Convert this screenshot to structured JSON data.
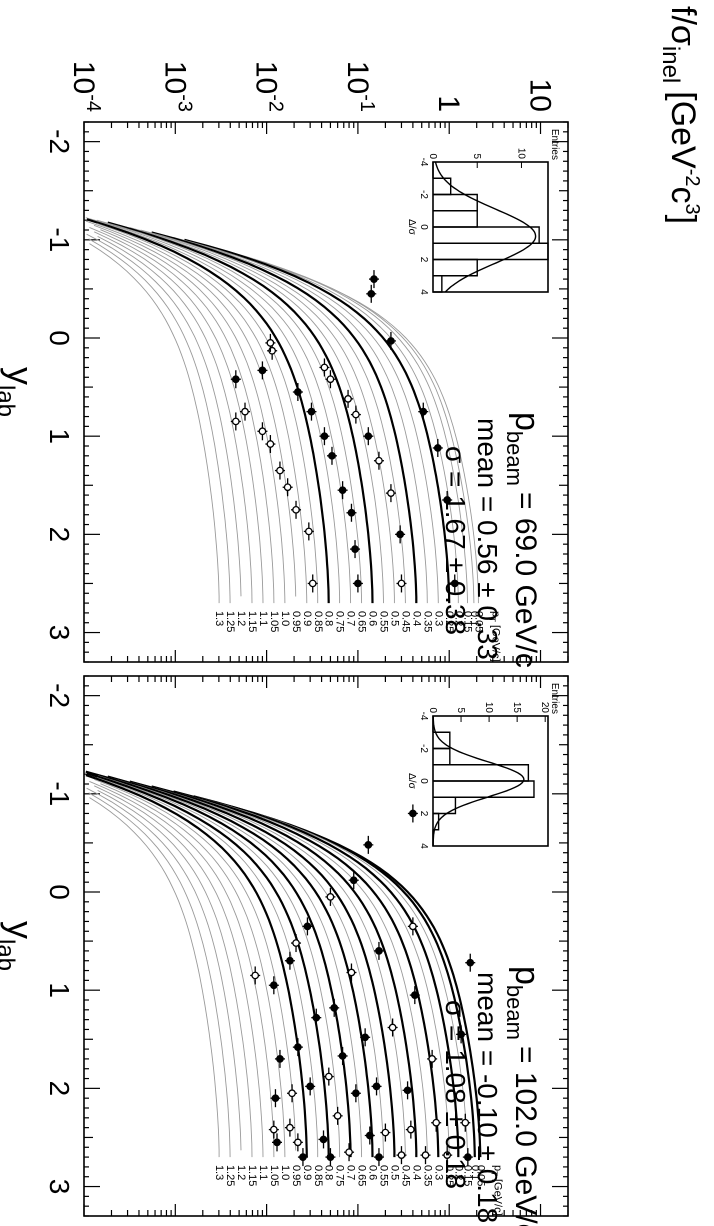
{
  "figure": {
    "ylabel_main": "f/σ",
    "ylabel_sub": "inel",
    "ylabel_unit": "[GeV",
    "ylabel_unit_sup1": "-2",
    "ylabel_unit_mid": "c",
    "ylabel_unit_sup2": "3",
    "ylabel_unit_end": "]",
    "y_ticks": [
      {
        "value": 0.0001,
        "base": "10",
        "exp": "-4"
      },
      {
        "value": 0.001,
        "base": "10",
        "exp": "-3"
      },
      {
        "value": 0.01,
        "base": "10",
        "exp": "-2"
      },
      {
        "value": 0.1,
        "base": "10",
        "exp": "-1"
      },
      {
        "value": 1,
        "base": "1",
        "exp": ""
      },
      {
        "value": 10,
        "base": "10",
        "exp": ""
      }
    ],
    "x_ticks": [
      -2,
      -1,
      0,
      1,
      2,
      3
    ],
    "xlabel_main": "y",
    "xlabel_sub": "lab"
  },
  "chart_data": [
    {
      "type": "line",
      "xlabel": "y_lab",
      "ylabel": "f/σ_inel [GeV^-2 c^3]",
      "xlim": [
        -2.2,
        3.3
      ],
      "ylim": [
        0.0001,
        20
      ],
      "yscale": "log",
      "beam_prefix": "p",
      "beam_sub": "beam",
      "beam_value": "= 69.0 GeV/c",
      "mean_text": "mean = 0.56 ± 0.33",
      "sigma_text": "σ = 1.67 ± 0.38",
      "pt_unit": "[GeV/c]",
      "pt_labels": [
        "0.05",
        "0.1",
        "0.15",
        "0.2",
        "0.25",
        "0.3",
        "0.35",
        "0.4",
        "0.45",
        "0.5",
        "0.55",
        "0.6",
        "0.65",
        "0.7",
        "0.75",
        "0.8",
        "0.85",
        "0.9",
        "0.95",
        "1.0",
        "1.05",
        "1.1",
        "1.15",
        "1.2",
        "1.25",
        "1.3"
      ],
      "curve_peak_log10": [
        0.32,
        0.27,
        0.2,
        0.1,
        0.0,
        -0.12,
        -0.24,
        -0.36,
        -0.48,
        -0.6,
        -0.72,
        -0.84,
        -0.96,
        -1.08,
        -1.2,
        -1.32,
        -1.44,
        -1.56,
        -1.68,
        -1.8,
        -1.92,
        -2.04,
        -2.16,
        -2.28,
        -2.4,
        -2.52
      ],
      "bold_curves": [
        4,
        7,
        11,
        15
      ],
      "points": [
        {
          "x": 2.5,
          "y": 1.15,
          "open": false
        },
        {
          "x": 1.65,
          "y": 0.95,
          "open": false
        },
        {
          "x": 1.12,
          "y": 0.75,
          "open": false
        },
        {
          "x": 0.75,
          "y": 0.52,
          "open": false
        },
        {
          "x": 0.03,
          "y": 0.23,
          "open": false
        },
        {
          "x": -0.45,
          "y": 0.14,
          "open": false
        },
        {
          "x": -0.6,
          "y": 0.15,
          "open": false
        },
        {
          "x": 2.5,
          "y": 0.3,
          "open": true
        },
        {
          "x": 2.0,
          "y": 0.29,
          "open": false
        },
        {
          "x": 1.58,
          "y": 0.23,
          "open": true
        },
        {
          "x": 1.25,
          "y": 0.17,
          "open": true
        },
        {
          "x": 1.0,
          "y": 0.13,
          "open": false
        },
        {
          "x": 0.78,
          "y": 0.095,
          "open": true
        },
        {
          "x": 0.62,
          "y": 0.078,
          "open": true
        },
        {
          "x": 0.42,
          "y": 0.05,
          "open": true
        },
        {
          "x": 0.3,
          "y": 0.043,
          "open": true
        },
        {
          "x": 2.5,
          "y": 0.1,
          "open": false
        },
        {
          "x": 2.15,
          "y": 0.093,
          "open": false
        },
        {
          "x": 1.78,
          "y": 0.085,
          "open": false
        },
        {
          "x": 1.55,
          "y": 0.068,
          "open": false
        },
        {
          "x": 1.2,
          "y": 0.052,
          "open": false
        },
        {
          "x": 1.0,
          "y": 0.043,
          "open": false
        },
        {
          "x": 0.75,
          "y": 0.031,
          "open": false
        },
        {
          "x": 0.55,
          "y": 0.022,
          "open": false
        },
        {
          "x": 0.13,
          "y": 0.0115,
          "open": true
        },
        {
          "x": 0.05,
          "y": 0.011,
          "open": true
        },
        {
          "x": 2.5,
          "y": 0.032,
          "open": true
        },
        {
          "x": 1.97,
          "y": 0.029,
          "open": true
        },
        {
          "x": 1.75,
          "y": 0.021,
          "open": true
        },
        {
          "x": 1.52,
          "y": 0.017,
          "open": true
        },
        {
          "x": 1.35,
          "y": 0.014,
          "open": true
        },
        {
          "x": 1.08,
          "y": 0.011,
          "open": true
        },
        {
          "x": 0.95,
          "y": 0.009,
          "open": true
        },
        {
          "x": 0.75,
          "y": 0.0058,
          "open": true
        },
        {
          "x": 0.85,
          "y": 0.0046,
          "open": true
        },
        {
          "x": 0.42,
          "y": 0.0046,
          "open": false
        },
        {
          "x": 0.33,
          "y": 0.009,
          "open": false
        }
      ],
      "inset": {
        "title": "Entries",
        "x_label": "Δ/σ",
        "x_ticks": [
          -4,
          -2,
          0,
          2,
          4
        ],
        "y_ticks": [
          0,
          5,
          10
        ],
        "ymax": 13,
        "bin_edges": [
          -4,
          -3,
          -2,
          -1,
          0,
          1,
          2,
          3,
          4
        ],
        "counts": [
          0,
          2,
          5,
          5,
          12,
          13,
          5,
          1
        ],
        "gauss_peak": 11.6,
        "gauss_mean": 0.56,
        "gauss_sigma": 1.67
      }
    },
    {
      "type": "line",
      "xlabel": "y_lab",
      "ylabel": "f/σ_inel [GeV^-2 c^3]",
      "xlim": [
        -2.2,
        3.3
      ],
      "ylim": [
        0.0001,
        20
      ],
      "yscale": "log",
      "beam_prefix": "p",
      "beam_sub": "beam",
      "beam_value": "= 102.0 GeV/c",
      "mean_text": "mean = -0.10 ± 0.18",
      "sigma_text": "σ = 1.08 ± 0.18",
      "pt_unit": "[GeV/c]",
      "pt_labels": [
        "0.05",
        "0.1",
        "0.15",
        "0.2",
        "0.25",
        "0.3",
        "0.35",
        "0.4",
        "0.45",
        "0.5",
        "0.55",
        "0.6",
        "0.65",
        "0.7",
        "0.75",
        "0.8",
        "0.85",
        "0.9",
        "0.95",
        "1.0",
        "1.05",
        "1.1",
        "1.15",
        "1.2",
        "1.25",
        "1.3"
      ],
      "curve_peak_log10": [
        0.34,
        0.28,
        0.2,
        0.1,
        0.0,
        -0.12,
        -0.24,
        -0.36,
        -0.48,
        -0.6,
        -0.72,
        -0.84,
        -0.96,
        -1.08,
        -1.2,
        -1.32,
        -1.44,
        -1.56,
        -1.68,
        -1.8,
        -1.92,
        -2.04,
        -2.16,
        -2.28,
        -2.4,
        -2.52
      ],
      "bold_curves": [
        0,
        1,
        3,
        5,
        7,
        9,
        11,
        13,
        15,
        17
      ],
      "points": [
        {
          "x": -0.8,
          "y": 0.4,
          "open": false
        },
        {
          "x": 0.72,
          "y": 1.7,
          "open": false
        },
        {
          "x": 1.45,
          "y": 1.35,
          "open": false
        },
        {
          "x": 2.35,
          "y": 1.5,
          "open": true
        },
        {
          "x": 2.7,
          "y": 1.6,
          "open": false
        },
        {
          "x": -0.48,
          "y": 0.13,
          "open": false
        },
        {
          "x": 0.35,
          "y": 0.4,
          "open": true
        },
        {
          "x": 1.05,
          "y": 0.42,
          "open": false
        },
        {
          "x": 1.7,
          "y": 0.65,
          "open": true
        },
        {
          "x": 2.35,
          "y": 0.72,
          "open": true
        },
        {
          "x": 2.68,
          "y": 0.95,
          "open": true
        },
        {
          "x": -0.12,
          "y": 0.09,
          "open": false
        },
        {
          "x": 0.6,
          "y": 0.17,
          "open": false
        },
        {
          "x": 1.38,
          "y": 0.24,
          "open": true
        },
        {
          "x": 2.02,
          "y": 0.35,
          "open": false
        },
        {
          "x": 2.42,
          "y": 0.38,
          "open": true
        },
        {
          "x": 2.68,
          "y": 0.55,
          "open": true
        },
        {
          "x": 0.05,
          "y": 0.05,
          "open": true
        },
        {
          "x": 0.82,
          "y": 0.085,
          "open": true
        },
        {
          "x": 1.48,
          "y": 0.12,
          "open": false
        },
        {
          "x": 1.98,
          "y": 0.16,
          "open": false
        },
        {
          "x": 2.45,
          "y": 0.2,
          "open": true
        },
        {
          "x": 2.68,
          "y": 0.3,
          "open": true
        },
        {
          "x": 0.35,
          "y": 0.028,
          "open": false
        },
        {
          "x": 1.18,
          "y": 0.055,
          "open": false
        },
        {
          "x": 1.67,
          "y": 0.068,
          "open": false
        },
        {
          "x": 2.05,
          "y": 0.095,
          "open": false
        },
        {
          "x": 2.48,
          "y": 0.135,
          "open": false
        },
        {
          "x": 2.7,
          "y": 0.17,
          "open": false
        },
        {
          "x": 0.52,
          "y": 0.021,
          "open": true
        },
        {
          "x": 1.28,
          "y": 0.035,
          "open": false
        },
        {
          "x": 1.88,
          "y": 0.048,
          "open": true
        },
        {
          "x": 2.28,
          "y": 0.06,
          "open": true
        },
        {
          "x": 2.65,
          "y": 0.08,
          "open": true
        },
        {
          "x": 0.7,
          "y": 0.018,
          "open": false
        },
        {
          "x": 1.58,
          "y": 0.022,
          "open": false
        },
        {
          "x": 1.98,
          "y": 0.03,
          "open": false
        },
        {
          "x": 2.52,
          "y": 0.042,
          "open": false
        },
        {
          "x": 2.7,
          "y": 0.05,
          "open": false
        },
        {
          "x": 0.95,
          "y": 0.012,
          "open": false
        },
        {
          "x": 1.7,
          "y": 0.014,
          "open": false
        },
        {
          "x": 2.05,
          "y": 0.019,
          "open": true
        },
        {
          "x": 2.4,
          "y": 0.018,
          "open": true
        },
        {
          "x": 2.55,
          "y": 0.022,
          "open": true
        },
        {
          "x": 2.7,
          "y": 0.025,
          "open": false
        },
        {
          "x": 0.85,
          "y": 0.0075,
          "open": true
        },
        {
          "x": 2.1,
          "y": 0.0125,
          "open": false
        },
        {
          "x": 2.42,
          "y": 0.012,
          "open": true
        },
        {
          "x": 2.55,
          "y": 0.013,
          "open": false
        }
      ],
      "inset": {
        "title": "Entries",
        "x_label": "Δ/σ",
        "x_ticks": [
          -4,
          -2,
          0,
          2,
          4
        ],
        "y_ticks": [
          0,
          5,
          10,
          15,
          20
        ],
        "ymax": 20.5,
        "bin_edges": [
          -4,
          -3,
          -2,
          -1,
          0,
          1,
          2,
          3,
          4
        ],
        "counts": [
          0,
          3,
          3,
          17,
          18,
          4,
          1,
          0
        ],
        "gauss_peak": 16.2,
        "gauss_mean": -0.1,
        "gauss_sigma": 1.08
      }
    }
  ]
}
